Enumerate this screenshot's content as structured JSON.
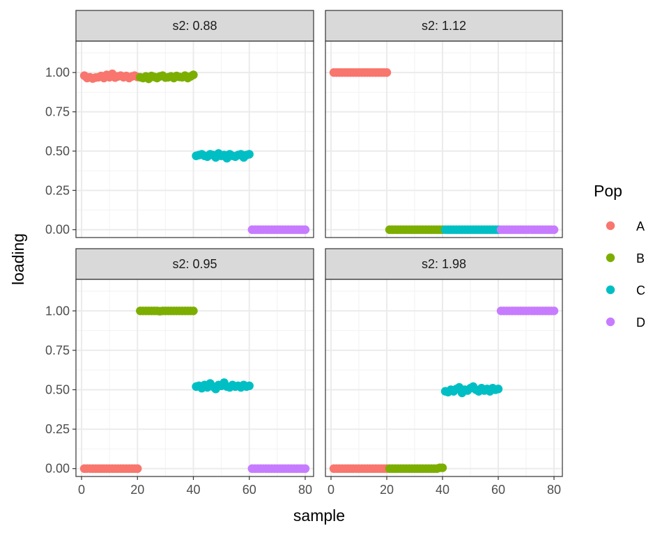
{
  "chart_data": {
    "type": "scatter",
    "xlabel": "sample",
    "ylabel": "loading",
    "xlim": [
      -2,
      83
    ],
    "ylim": [
      -0.05,
      1.2
    ],
    "x_ticks": [
      0,
      20,
      40,
      60,
      80
    ],
    "x_tick_labels": [
      "0",
      "20",
      "40",
      "60",
      "80"
    ],
    "y_ticks": [
      0,
      0.25,
      0.5,
      0.75,
      1
    ],
    "y_tick_labels": [
      "0.00",
      "0.25",
      "0.50",
      "0.75",
      "1.00"
    ],
    "grid": true,
    "legend": {
      "title": "Pop",
      "position": "right",
      "entries": [
        {
          "name": "A",
          "color": "#F8766D"
        },
        {
          "name": "B",
          "color": "#7CAE00"
        },
        {
          "name": "C",
          "color": "#00BFC4"
        },
        {
          "name": "D",
          "color": "#C77CFF"
        }
      ]
    },
    "panels": [
      {
        "strip": "s2: 0.88",
        "series": [
          {
            "name": "A",
            "x_range": [
              1,
              20
            ],
            "y": [
              0.98,
              0.965,
              0.97,
              0.962,
              0.968,
              0.97,
              0.978,
              0.965,
              0.985,
              0.97,
              0.992,
              0.968,
              0.975,
              0.98,
              0.97,
              0.978,
              0.965,
              0.975,
              0.98,
              0.972
            ]
          },
          {
            "name": "B",
            "x_range": [
              21,
              40
            ],
            "y": [
              0.97,
              0.965,
              0.975,
              0.96,
              0.978,
              0.972,
              0.965,
              0.975,
              0.98,
              0.968,
              0.97,
              0.975,
              0.965,
              0.978,
              0.972,
              0.97,
              0.98,
              0.965,
              0.975,
              0.985
            ]
          },
          {
            "name": "C",
            "x_range": [
              41,
              60
            ],
            "y": [
              0.47,
              0.475,
              0.48,
              0.47,
              0.465,
              0.48,
              0.475,
              0.46,
              0.485,
              0.47,
              0.475,
              0.455,
              0.48,
              0.47,
              0.465,
              0.475,
              0.48,
              0.46,
              0.475,
              0.48
            ]
          },
          {
            "name": "D",
            "x_range": [
              61,
              80
            ],
            "y": [
              0,
              0,
              0,
              0,
              0,
              0,
              0,
              0,
              0,
              0,
              0,
              0,
              0,
              0,
              0,
              0,
              0,
              0,
              0,
              0
            ]
          }
        ]
      },
      {
        "strip": "s2: 1.12",
        "series": [
          {
            "name": "A",
            "x_range": [
              1,
              20
            ],
            "y": [
              1,
              1,
              1,
              1,
              1,
              1,
              1,
              1,
              1,
              1,
              1,
              1,
              1,
              1,
              1,
              1,
              1,
              1,
              1,
              1
            ]
          },
          {
            "name": "B",
            "x_range": [
              21,
              40
            ],
            "y": [
              0,
              0,
              0,
              0,
              0,
              0,
              0,
              0,
              0,
              0,
              0,
              0,
              0,
              0,
              0,
              0,
              0,
              0,
              0,
              0
            ]
          },
          {
            "name": "C",
            "x_range": [
              41,
              60
            ],
            "y": [
              0,
              0,
              0,
              0,
              0,
              0,
              0,
              0,
              0,
              0,
              0,
              0,
              0,
              0,
              0,
              0,
              0,
              0,
              0,
              0
            ]
          },
          {
            "name": "D",
            "x_range": [
              61,
              80
            ],
            "y": [
              0,
              0,
              0,
              0,
              0,
              0,
              0,
              0,
              0,
              0,
              0,
              0,
              0,
              0,
              0,
              0,
              0,
              0,
              0,
              0
            ]
          }
        ]
      },
      {
        "strip": "s2: 0.95",
        "series": [
          {
            "name": "A",
            "x_range": [
              1,
              20
            ],
            "y": [
              0,
              0,
              0,
              0,
              0,
              0,
              0,
              0,
              0,
              0,
              0,
              0,
              0,
              0,
              0,
              0,
              0,
              0,
              0,
              0
            ]
          },
          {
            "name": "B",
            "x_range": [
              21,
              40
            ],
            "y": [
              1,
              1,
              1,
              1,
              1,
              1,
              1,
              0.998,
              1,
              1,
              1,
              1,
              1,
              1,
              1,
              1,
              1,
              1,
              1,
              1
            ]
          },
          {
            "name": "C",
            "x_range": [
              41,
              60
            ],
            "y": [
              0.52,
              0.525,
              0.51,
              0.53,
              0.515,
              0.54,
              0.52,
              0.505,
              0.53,
              0.525,
              0.545,
              0.52,
              0.515,
              0.53,
              0.52,
              0.525,
              0.515,
              0.53,
              0.52,
              0.525
            ]
          },
          {
            "name": "D",
            "x_range": [
              61,
              80
            ],
            "y": [
              0,
              0,
              0,
              0,
              0,
              0,
              0,
              0,
              0,
              0,
              0,
              0,
              0,
              0,
              0,
              0,
              0,
              0,
              0,
              0
            ]
          }
        ]
      },
      {
        "strip": "s2: 1.98",
        "series": [
          {
            "name": "A",
            "x_range": [
              1,
              20
            ],
            "y": [
              0,
              0,
              0,
              0,
              0,
              0,
              0,
              0,
              0,
              0,
              0,
              0,
              0,
              0,
              0,
              0,
              0,
              0,
              0,
              0
            ]
          },
          {
            "name": "B",
            "x_range": [
              21,
              40
            ],
            "y": [
              0,
              0,
              0,
              0,
              0,
              0,
              0,
              0,
              0,
              0,
              0,
              0,
              0,
              0,
              0,
              0,
              0,
              0,
              0.005,
              0.005
            ]
          },
          {
            "name": "C",
            "x_range": [
              41,
              60
            ],
            "y": [
              0.49,
              0.485,
              0.5,
              0.49,
              0.505,
              0.515,
              0.48,
              0.5,
              0.495,
              0.51,
              0.52,
              0.5,
              0.49,
              0.51,
              0.495,
              0.505,
              0.49,
              0.51,
              0.5,
              0.505
            ]
          },
          {
            "name": "D",
            "x_range": [
              61,
              80
            ],
            "y": [
              1,
              1,
              1,
              1,
              1,
              1,
              1,
              1,
              1,
              1,
              1,
              1,
              1,
              1,
              1,
              1,
              1,
              1,
              1,
              1
            ]
          }
        ]
      }
    ]
  }
}
